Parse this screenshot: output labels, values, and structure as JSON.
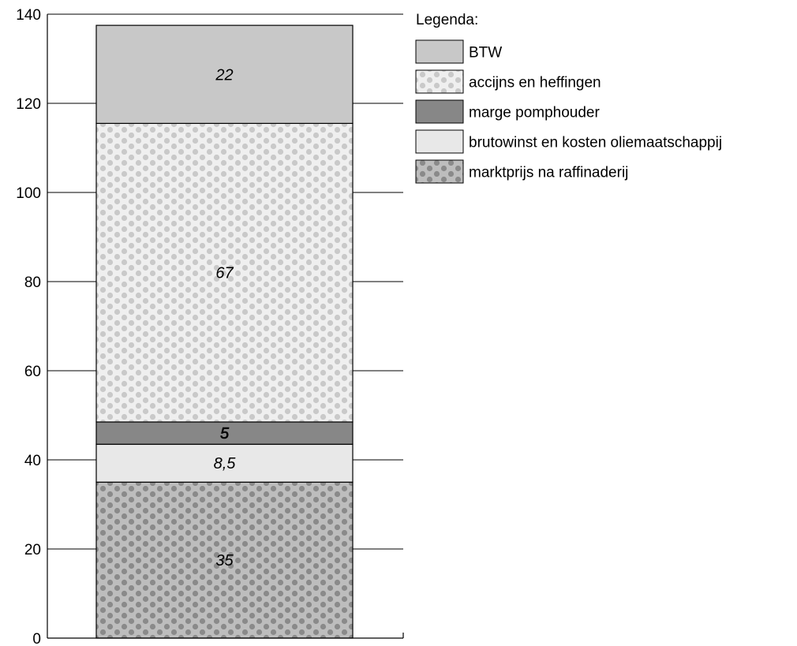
{
  "chart_data": {
    "type": "bar",
    "stacked": true,
    "categories": [
      ""
    ],
    "series": [
      {
        "name": "marktprijs na raffinaderij",
        "values": [
          35
        ],
        "label": "35",
        "fill": "#bdbdbd",
        "pattern": "dots-dark",
        "label_italic": true
      },
      {
        "name": "brutowinst en kosten oliemaatschappij",
        "values": [
          8.5
        ],
        "label": "8,5",
        "fill": "#e8e8e8",
        "pattern": "none",
        "label_italic": true
      },
      {
        "name": "marge pomphouder",
        "values": [
          5
        ],
        "label": "5",
        "fill": "#878787",
        "pattern": "none",
        "label_italic": true
      },
      {
        "name": "accijns en heffingen",
        "values": [
          67
        ],
        "label": "67",
        "fill": "#efefef",
        "pattern": "dots-light",
        "label_italic": true
      },
      {
        "name": "BTW",
        "values": [
          22
        ],
        "label": "22",
        "fill": "#c8c8c8",
        "pattern": "none",
        "label_italic": true
      }
    ],
    "ylim": [
      0,
      140
    ],
    "yticks": [
      "0",
      "20",
      "40",
      "60",
      "80",
      "100",
      "120",
      "140"
    ],
    "grid": true,
    "legend": {
      "title": "Legenda:",
      "position": "right",
      "order": [
        "BTW",
        "accijns en heffingen",
        "marge pomphouder",
        "brutowinst en kosten oliemaatschappij",
        "marktprijs na raffinaderij"
      ]
    },
    "colors": {
      "axis": "#000000",
      "outline": "#000000"
    }
  }
}
